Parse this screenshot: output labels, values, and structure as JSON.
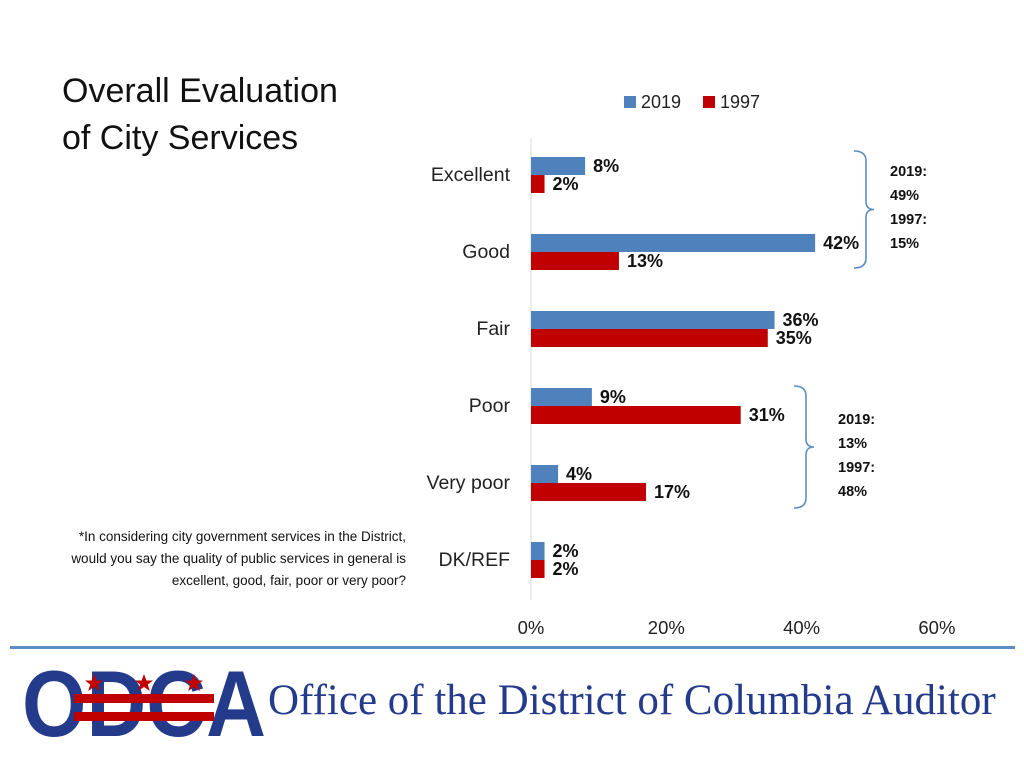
{
  "title_lines": [
    "Overall Evaluation",
    "of City Services"
  ],
  "footnote": "*In considering city government services in the District, would you say the quality of public services in general is excellent, good, fair, poor or very poor?",
  "chart_data": {
    "type": "bar",
    "orientation": "horizontal",
    "categories": [
      "Excellent",
      "Good",
      "Fair",
      "Poor",
      "Very poor",
      "DK/REF"
    ],
    "series": [
      {
        "name": "2019",
        "color": "#4f81bd",
        "values": [
          8,
          42,
          36,
          9,
          4,
          2
        ],
        "labels": [
          "8%",
          "42%",
          "36%",
          "9%",
          "4%",
          "2%"
        ]
      },
      {
        "name": "1997",
        "color": "#c00000",
        "values": [
          2,
          13,
          35,
          31,
          17,
          2
        ],
        "labels": [
          "2%",
          "13%",
          "35%",
          "31%",
          "17%",
          "2%"
        ]
      }
    ],
    "x_ticks": [
      "0%",
      "20%",
      "40%",
      "60%"
    ],
    "xlim": [
      0,
      60
    ],
    "legend": "top"
  },
  "bracket_positive": [
    "2019:",
    "49%",
    "1997:",
    "15%"
  ],
  "bracket_negative": [
    "2019:",
    "13%",
    "1997:",
    "48%"
  ],
  "logo_text": "ODCA",
  "office_name": "Office of the District of Columbia Auditor",
  "colors": {
    "blue": "#4f81bd",
    "red": "#c00000",
    "navy": "#243b8c",
    "rule": "#5b8ec4"
  }
}
